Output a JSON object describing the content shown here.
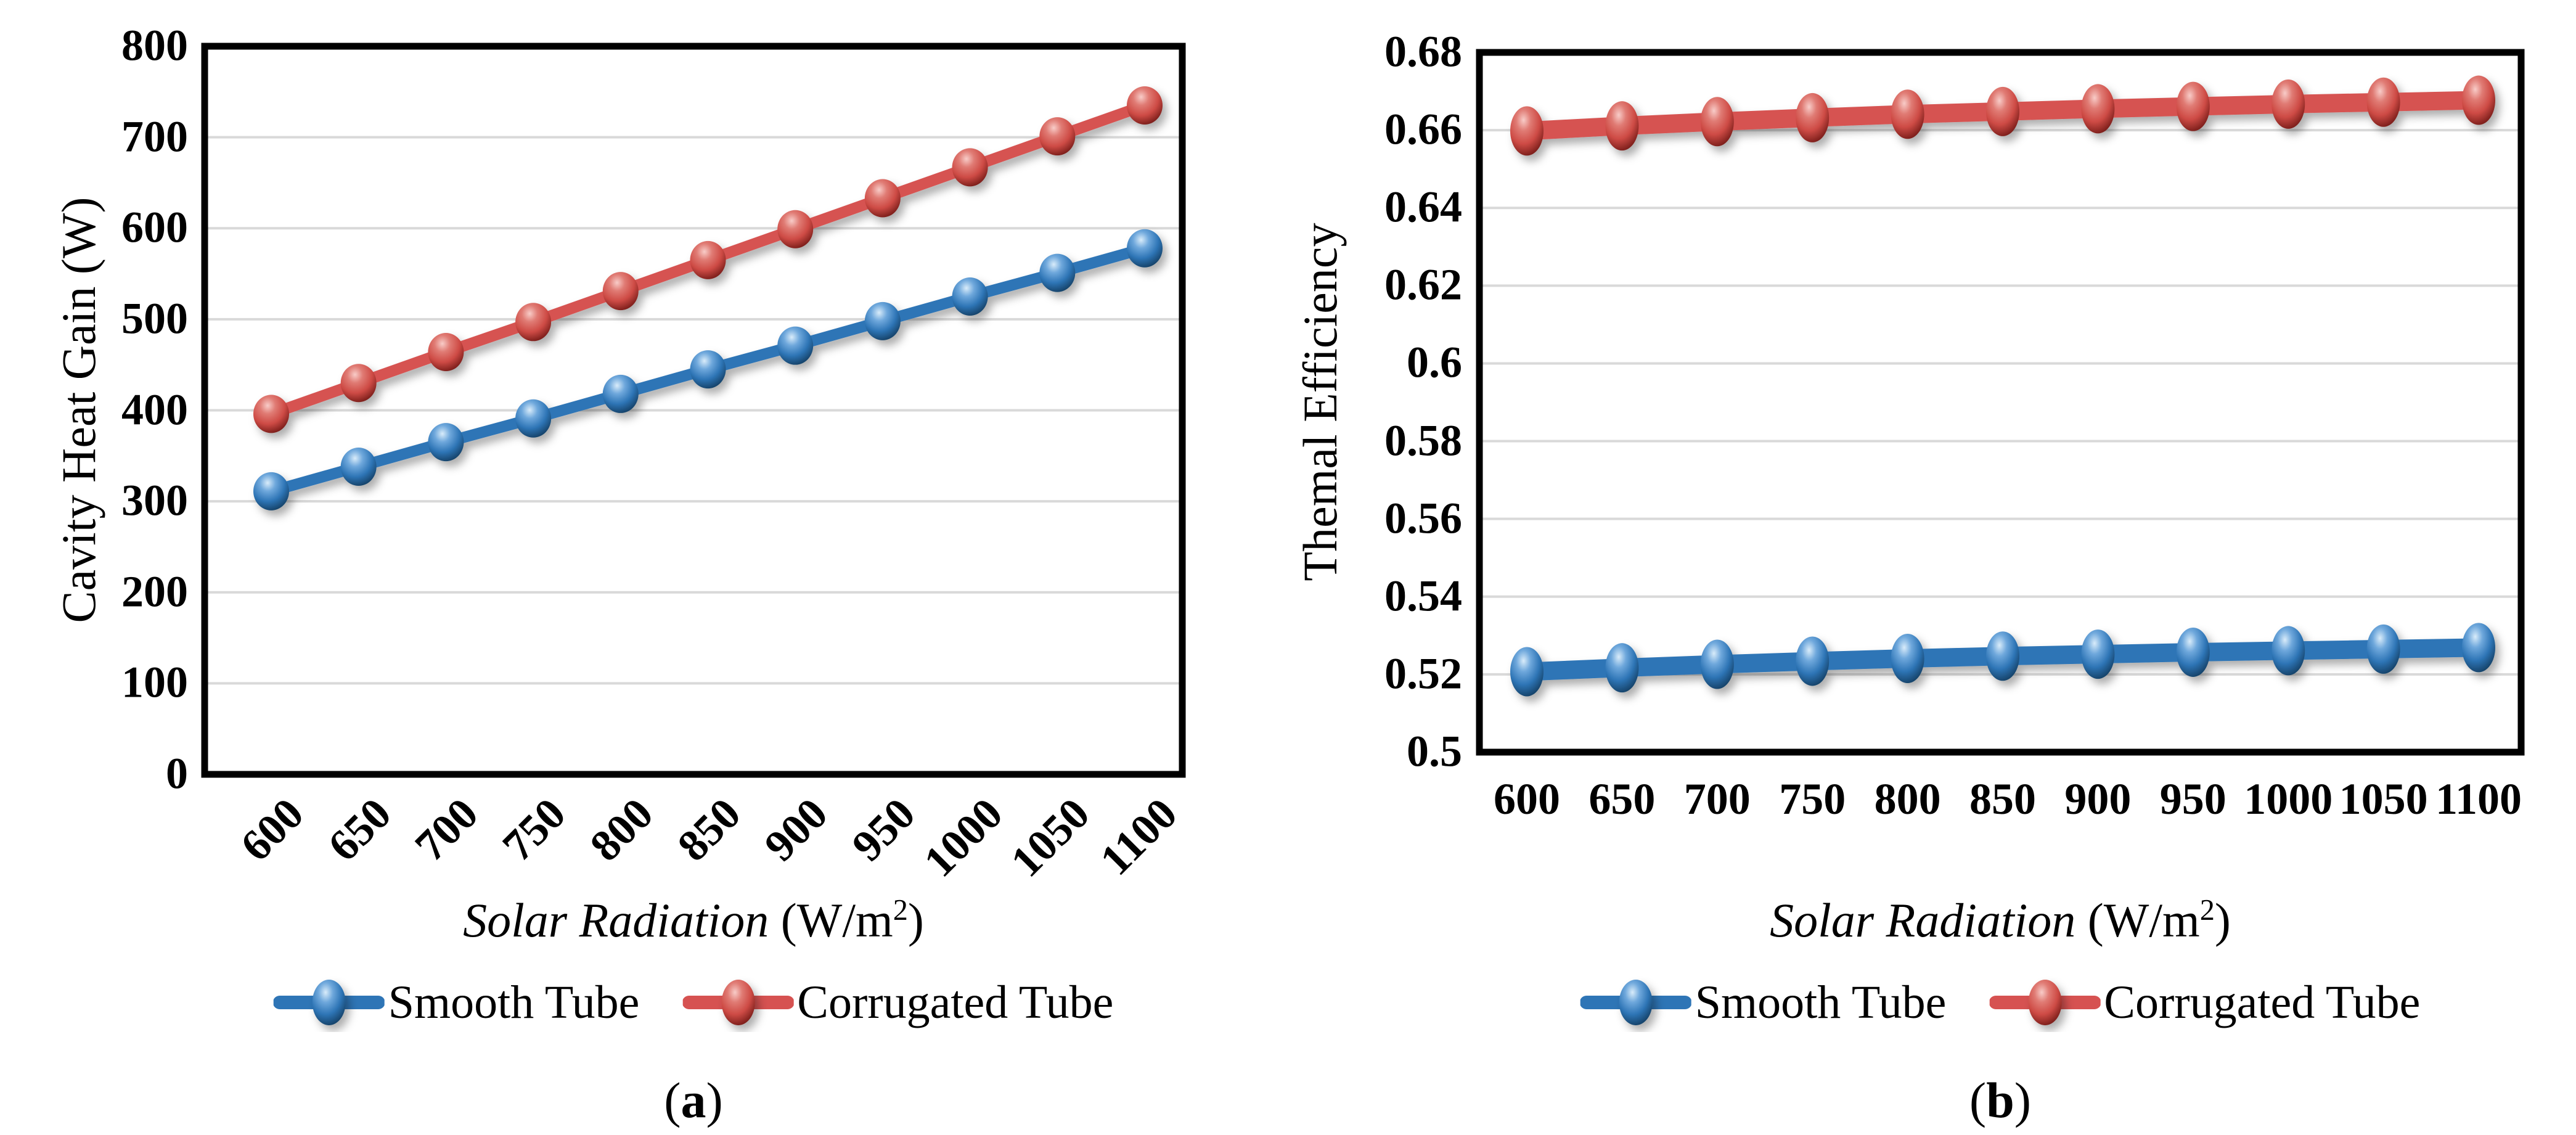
{
  "figure_name": "solar-radiation-two-panel-line-figure",
  "legend": {
    "items": [
      {
        "label": "Smooth Tube",
        "color": "#2E75B6"
      },
      {
        "label": "Corrugated Tube",
        "color": "#D65251"
      }
    ]
  },
  "chart_data": [
    {
      "type": "line",
      "panel": "a",
      "caption_open": "(",
      "caption_letter": "a",
      "caption_close": ")",
      "xlabel": "Solar Radiation (W/m²)",
      "xlabel_italic": "Solar Radiation",
      "xlabel_unit_pre": " (W/m",
      "xlabel_sup": "2",
      "xlabel_unit_post": ")",
      "ylabel": "Cavity Heat Gain (W)",
      "x": [
        600,
        650,
        700,
        750,
        800,
        850,
        900,
        950,
        1000,
        1050,
        1100
      ],
      "x_tick_labels": [
        "600",
        "650",
        "700",
        "750",
        "800",
        "850",
        "900",
        "950",
        "1000",
        "1050",
        "1100"
      ],
      "x_tick_rotation_deg": -45,
      "ylim": [
        0,
        800
      ],
      "y_ticks": [
        0,
        100,
        200,
        300,
        400,
        500,
        600,
        700,
        800
      ],
      "y_tick_labels": [
        "0",
        "100",
        "200",
        "300",
        "400",
        "500",
        "600",
        "700",
        "800"
      ],
      "grid": "horizontal",
      "legend_position": "bottom",
      "series": [
        {
          "name": "Smooth Tube",
          "color": "#2E75B6",
          "values": [
            311,
            338,
            365,
            391,
            418,
            445,
            471,
            498,
            525,
            551,
            578
          ]
        },
        {
          "name": "Corrugated Tube",
          "color": "#D65251",
          "values": [
            396,
            430,
            464,
            497,
            531,
            565,
            599,
            633,
            667,
            701,
            735
          ]
        }
      ]
    },
    {
      "type": "line",
      "panel": "b",
      "caption_open": "(",
      "caption_letter": "b",
      "caption_close": ")",
      "xlabel": "Solar Radiation (W/m²)",
      "xlabel_italic": "Solar Radiation",
      "xlabel_unit_pre": " (W/m",
      "xlabel_sup": "2",
      "xlabel_unit_post": ")",
      "ylabel": "Themal Efficiency",
      "x": [
        600,
        650,
        700,
        750,
        800,
        850,
        900,
        950,
        1000,
        1050,
        1100
      ],
      "x_tick_labels": [
        "600",
        "650",
        "700",
        "750",
        "800",
        "850",
        "900",
        "950",
        "1000",
        "1050",
        "1100"
      ],
      "x_tick_rotation_deg": 0,
      "ylim": [
        0.5,
        0.68
      ],
      "y_ticks": [
        0.5,
        0.52,
        0.54,
        0.56,
        0.58,
        0.6,
        0.62,
        0.64,
        0.66,
        0.68
      ],
      "y_tick_labels": [
        "0.5",
        "0.52",
        "0.54",
        "0.56",
        "0.58",
        "0.6",
        "0.62",
        "0.64",
        "0.66",
        "0.68"
      ],
      "grid": "horizontal",
      "legend_position": "bottom",
      "series": [
        {
          "name": "Smooth Tube",
          "color": "#2E75B6",
          "values": [
            0.5207,
            0.5217,
            0.5226,
            0.5234,
            0.5241,
            0.5247,
            0.5252,
            0.5257,
            0.5261,
            0.5265,
            0.5269
          ]
        },
        {
          "name": "Corrugated Tube",
          "color": "#D65251",
          "values": [
            0.6598,
            0.6611,
            0.6622,
            0.6632,
            0.6641,
            0.6648,
            0.6655,
            0.6661,
            0.6667,
            0.6672,
            0.6677
          ]
        }
      ]
    }
  ]
}
